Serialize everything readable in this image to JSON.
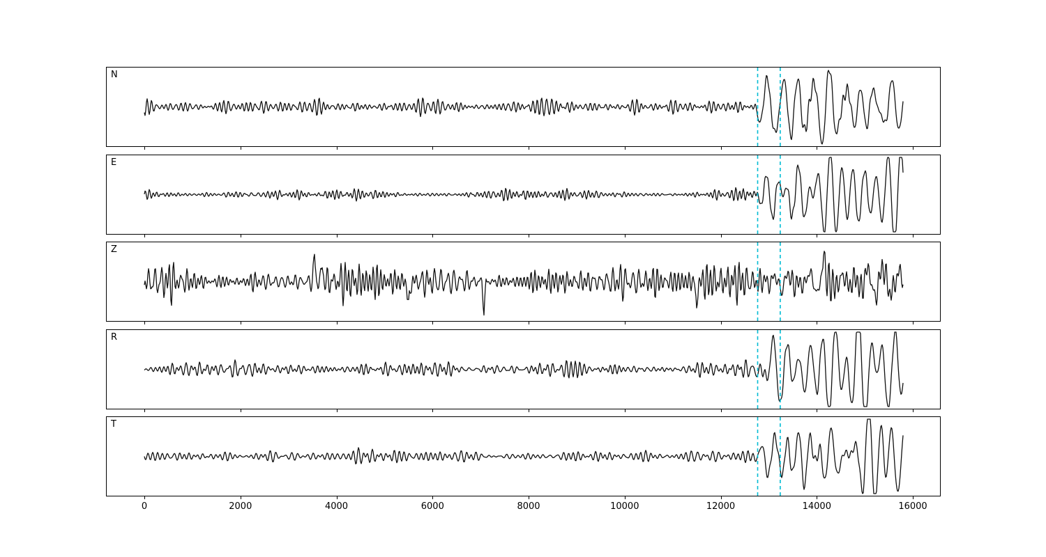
{
  "chart_data": {
    "type": "line",
    "title": "",
    "description": "Five-channel seismogram record section (components N, E, Z, R, T) plotted as black waveform traces with two vertical dashed cyan phase-pick lines near sample 12770 and 13240. Background noise precedes a higher-amplitude arrival after the picks on N, E, R and T; Z is noisier throughout with large spikes.",
    "x_range": [
      0,
      16000
    ],
    "data_end": 15800,
    "x_ticks": [
      0,
      2000,
      4000,
      6000,
      8000,
      10000,
      12000,
      14000,
      16000
    ],
    "x_tick_labels": [
      "0",
      "2000",
      "4000",
      "6000",
      "8000",
      "10000",
      "12000",
      "14000",
      "16000"
    ],
    "pick_lines": [
      12770,
      13240
    ],
    "pick_color": "#00bcd4",
    "trace_color": "#111111",
    "panels": [
      {
        "label": "N",
        "seed": 11,
        "base_amp": 8,
        "signal_amp": 30,
        "spiky": false
      },
      {
        "label": "E",
        "seed": 23,
        "base_amp": 6,
        "signal_amp": 22,
        "spiky": false
      },
      {
        "label": "Z",
        "seed": 37,
        "base_amp": 16,
        "signal_amp": 7,
        "spiky": true
      },
      {
        "label": "R",
        "seed": 47,
        "base_amp": 7,
        "signal_amp": 30,
        "spiky": false
      },
      {
        "label": "T",
        "seed": 59,
        "base_amp": 8,
        "signal_amp": 24,
        "spiky": false
      }
    ]
  }
}
